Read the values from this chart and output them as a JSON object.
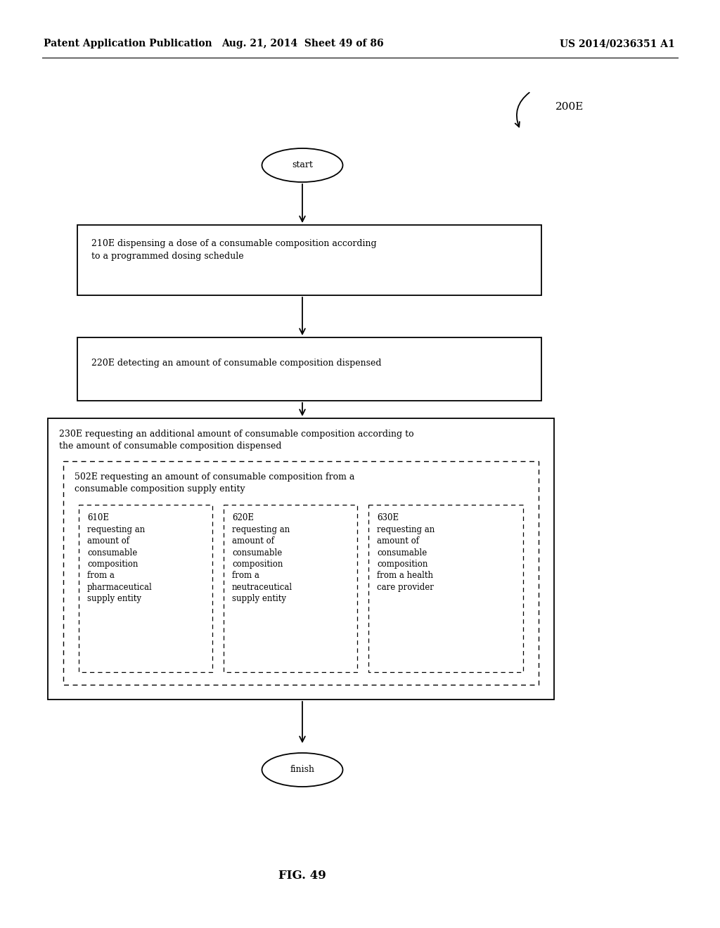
{
  "header_left": "Patent Application Publication",
  "header_mid": "Aug. 21, 2014  Sheet 49 of 86",
  "header_right": "US 2014/0236351 A1",
  "label_200E": "200E",
  "start_text": "start",
  "finish_text": "finish",
  "fig_caption": "FIG. 49",
  "box210_text": "210E dispensing a dose of a consumable composition according\nto a programmed dosing schedule",
  "box220_text": "220E detecting an amount of consumable composition dispensed",
  "box230_text": "230E requesting an additional amount of consumable composition according to\nthe amount of consumable composition dispensed",
  "box502_text": "502E requesting an amount of consumable composition from a\nconsumable composition supply entity",
  "box610_text": "610E\nrequesting an\namount of\nconsumable\ncomposition\nfrom a\npharmaceutical\nsupply entity",
  "box620_text": "620E\nrequesting an\namount of\nconsumable\ncomposition\nfrom a\nneutraceutical\nsupply entity",
  "box630_text": "630E\nrequesting an\namount of\nconsumable\ncomposition\nfrom a health\ncare provider",
  "bg_color": "#ffffff",
  "text_color": "#000000",
  "line_color": "#000000",
  "box_solid_color": "#ffffff",
  "font_size_header": 10,
  "font_size_main": 9,
  "font_size_small": 8.5,
  "font_size_label": 11,
  "font_size_caption": 12
}
